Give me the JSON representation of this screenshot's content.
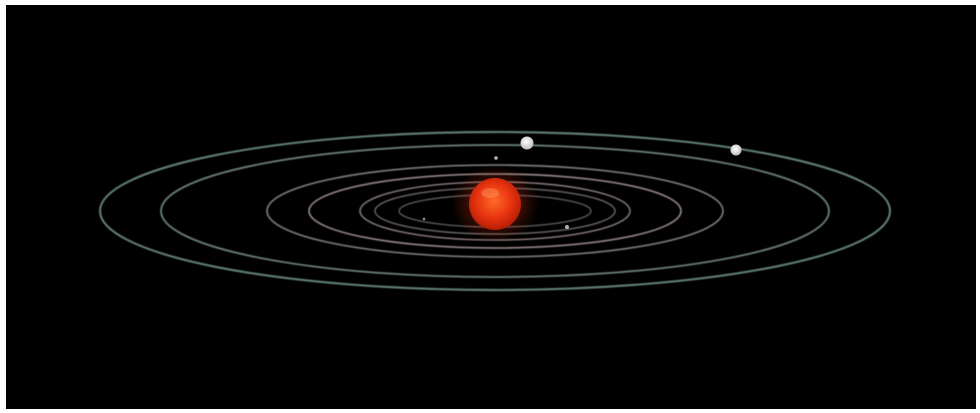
{
  "scene": {
    "background_color": "#000000",
    "frame_color": "#ffffff",
    "star": {
      "name": "red-dwarf-star",
      "core_color": "#ff6a28",
      "mid_color": "#e83410",
      "edge_color": "#b81e06"
    },
    "orbit_colors": {
      "inner": "#b9a7a4",
      "outer": "#6f8f86"
    },
    "planet_color": "#f0f0ec",
    "orbit_count": 7,
    "planet_count": 5
  }
}
